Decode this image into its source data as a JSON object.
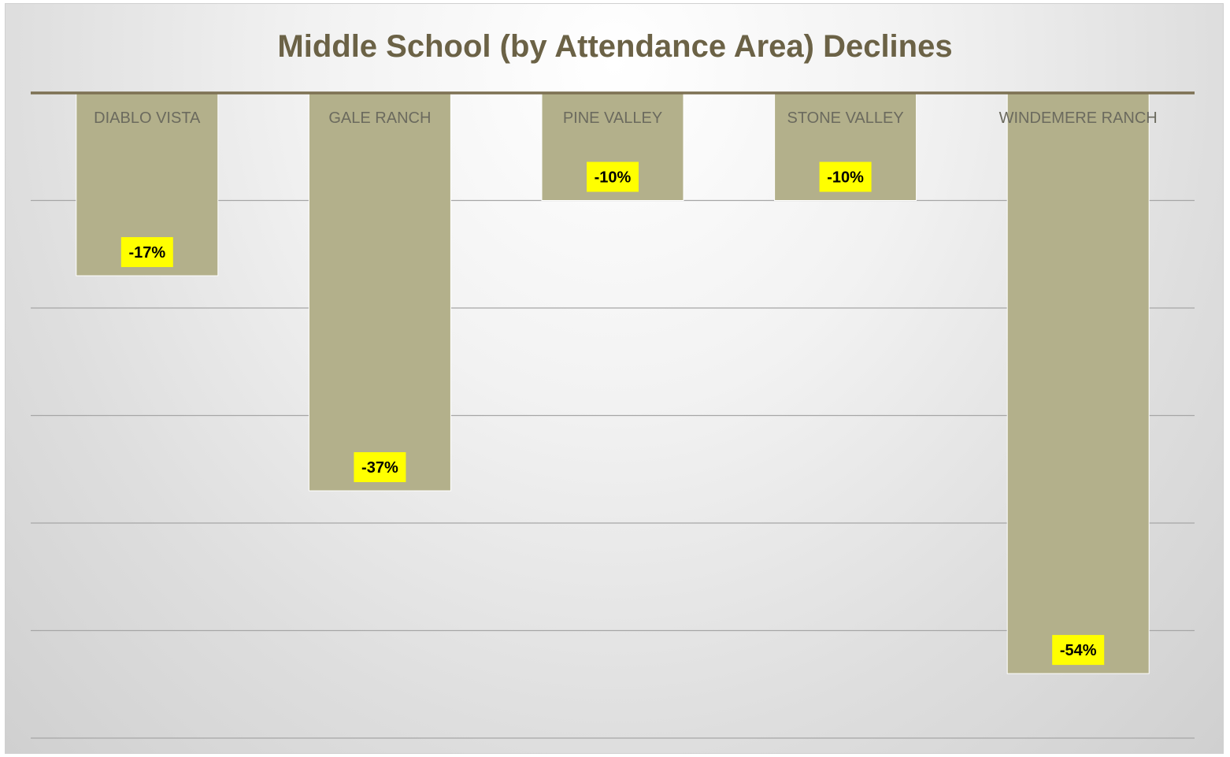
{
  "chart_data": {
    "type": "bar",
    "title": "Middle School (by Attendance Area) Declines",
    "categories": [
      "DIABLO VISTA",
      "GALE RANCH",
      "PINE VALLEY",
      "STONE VALLEY",
      "WINDEMERE RANCH"
    ],
    "values": [
      -17,
      -37,
      -10,
      -10,
      -54
    ],
    "value_labels": [
      "-17%",
      "-37%",
      "-10%",
      "-10%",
      "-54%"
    ],
    "unit": "%",
    "ylim": [
      -60,
      0
    ],
    "xlabel": "",
    "ylabel": "",
    "grid": true,
    "legend": "none",
    "colors": {
      "bar": "#b3b08b",
      "bar_edge": "#ffffff",
      "title": "#6b6246",
      "axis_line": "#7d7153",
      "category_text": "#6b6a5e",
      "data_label_bg": "#ffff00",
      "data_label_text": "#000000",
      "gridline": "#a6a6a6"
    }
  }
}
